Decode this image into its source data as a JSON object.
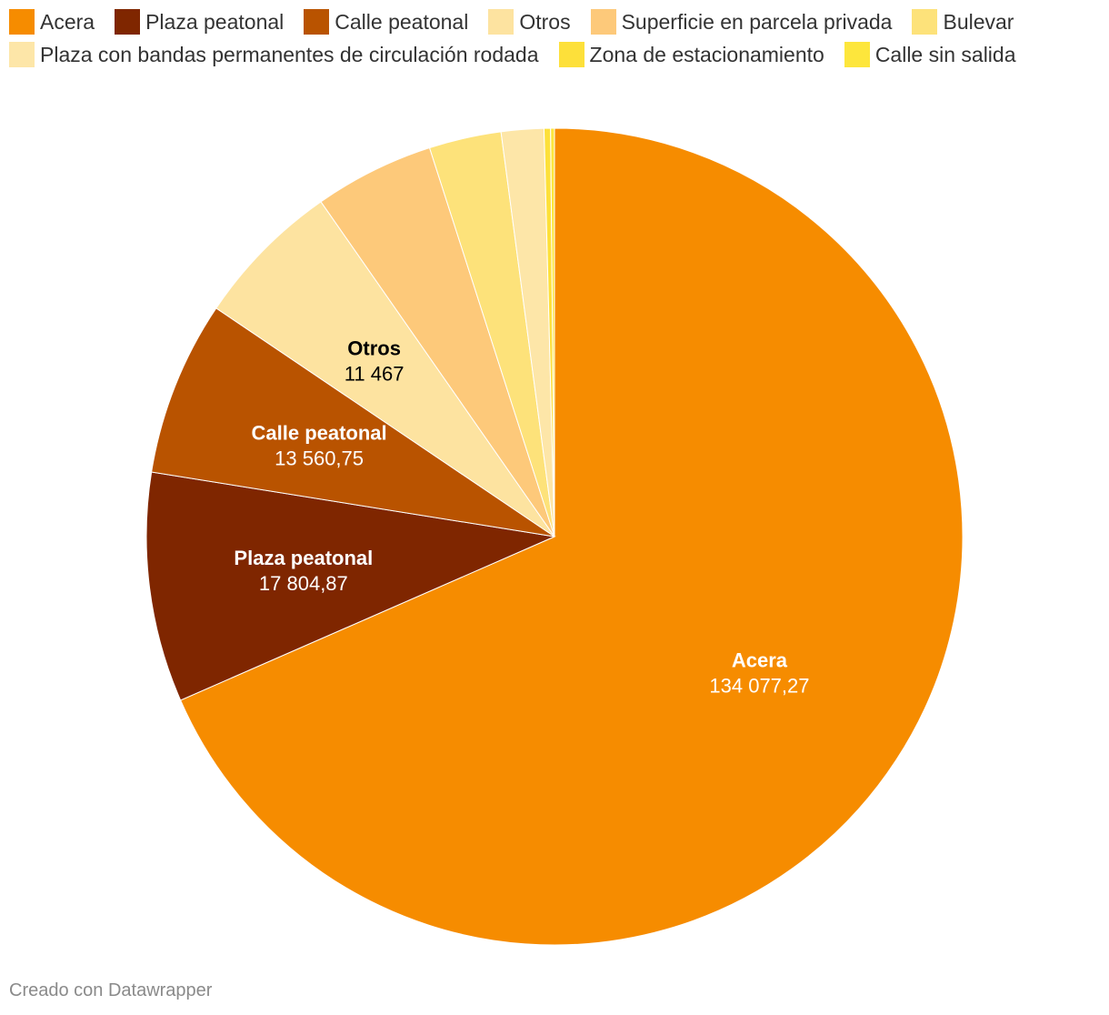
{
  "chart_data": {
    "type": "pie",
    "title": "",
    "legend_position": "top",
    "start_angle_deg": 0,
    "direction": "clockwise",
    "slices": [
      {
        "key": "acera",
        "label": "Acera",
        "value": 134077.27,
        "value_text": "134 077,27",
        "color": "#f68c00",
        "label_color": "#ffffff",
        "show_label": true
      },
      {
        "key": "plaza-peatonal",
        "label": "Plaza peatonal",
        "value": 17804.87,
        "value_text": "17 804,87",
        "color": "#7f2600",
        "label_color": "#ffffff",
        "show_label": true
      },
      {
        "key": "calle-peatonal",
        "label": "Calle peatonal",
        "value": 13560.75,
        "value_text": "13 560,75",
        "color": "#b95300",
        "label_color": "#ffffff",
        "show_label": true
      },
      {
        "key": "otros",
        "label": "Otros",
        "value": 11467,
        "value_text": "11 467",
        "color": "#fde3a0",
        "label_color": "#000000",
        "show_label": true
      },
      {
        "key": "superficie-parcela-privada",
        "label": "Superficie en parcela privada",
        "value": 9300,
        "value_text": "",
        "color": "#fdc97a",
        "label_color": "#000000",
        "show_label": false
      },
      {
        "key": "bulevar",
        "label": "Bulevar",
        "value": 5600,
        "value_text": "",
        "color": "#fde27a",
        "label_color": "#000000",
        "show_label": false
      },
      {
        "key": "plaza-bandas-rodada",
        "label": "Plaza con bandas permanentes de circulación rodada",
        "value": 3300,
        "value_text": "",
        "color": "#fde6a8",
        "label_color": "#000000",
        "show_label": false
      },
      {
        "key": "zona-estacionamiento",
        "label": "Zona de estacionamiento",
        "value": 500,
        "value_text": "",
        "color": "#fde03a",
        "label_color": "#000000",
        "show_label": false
      },
      {
        "key": "calle-sin-salida",
        "label": "Calle sin salida",
        "value": 300,
        "value_text": "",
        "color": "#fde63c",
        "label_color": "#000000",
        "show_label": false
      }
    ]
  },
  "footer": {
    "credit": "Creado con Datawrapper"
  }
}
